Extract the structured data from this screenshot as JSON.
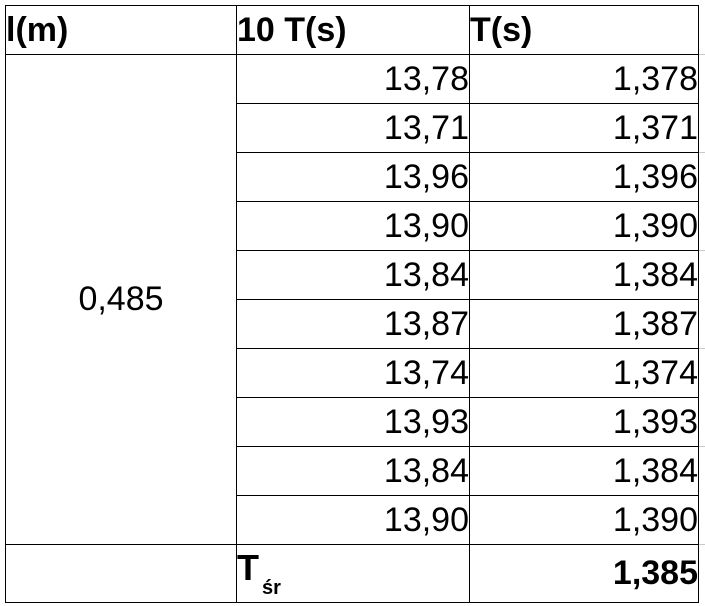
{
  "headers": {
    "length": "l(m)",
    "ten_periods": "10 T(s)",
    "period": "T(s)"
  },
  "length_value": "0,485",
  "rows": [
    {
      "ten_t": "13,78",
      "t": "1,378"
    },
    {
      "ten_t": "13,71",
      "t": "1,371"
    },
    {
      "ten_t": "13,96",
      "t": "1,396"
    },
    {
      "ten_t": "13,90",
      "t": "1,390"
    },
    {
      "ten_t": "13,84",
      "t": "1,384"
    },
    {
      "ten_t": "13,87",
      "t": "1,387"
    },
    {
      "ten_t": "13,74",
      "t": "1,374"
    },
    {
      "ten_t": "13,93",
      "t": "1,393"
    },
    {
      "ten_t": "13,84",
      "t": "1,384"
    },
    {
      "ten_t": "13,90",
      "t": "1,390"
    }
  ],
  "average": {
    "symbol": "T",
    "subscript": "śr",
    "value": "1,385"
  }
}
